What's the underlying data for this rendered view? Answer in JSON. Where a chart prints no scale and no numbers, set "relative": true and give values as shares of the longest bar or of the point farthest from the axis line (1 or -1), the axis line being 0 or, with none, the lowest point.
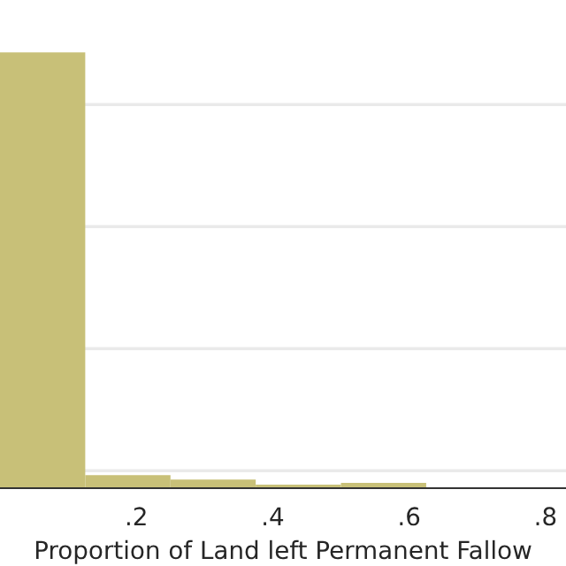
{
  "chart_data": {
    "type": "bar",
    "xlabel": "Proportion of Land left Permanent Fallow",
    "x": [
      0.0625,
      0.1875,
      0.3125,
      0.4375,
      0.5625
    ],
    "values": [
      1,
      0.03,
      0.02,
      0.008,
      0.012
    ],
    "relative": true,
    "color": "#c8c078",
    "xlim": [
      0,
      0.83
    ],
    "xticks": [
      {
        "value": 0.2,
        "label": ".2"
      },
      {
        "value": 0.4,
        "label": ".4"
      },
      {
        "value": 0.6,
        "label": ".6"
      },
      {
        "value": 0.8,
        "label": ".8"
      }
    ],
    "grid": "y"
  }
}
